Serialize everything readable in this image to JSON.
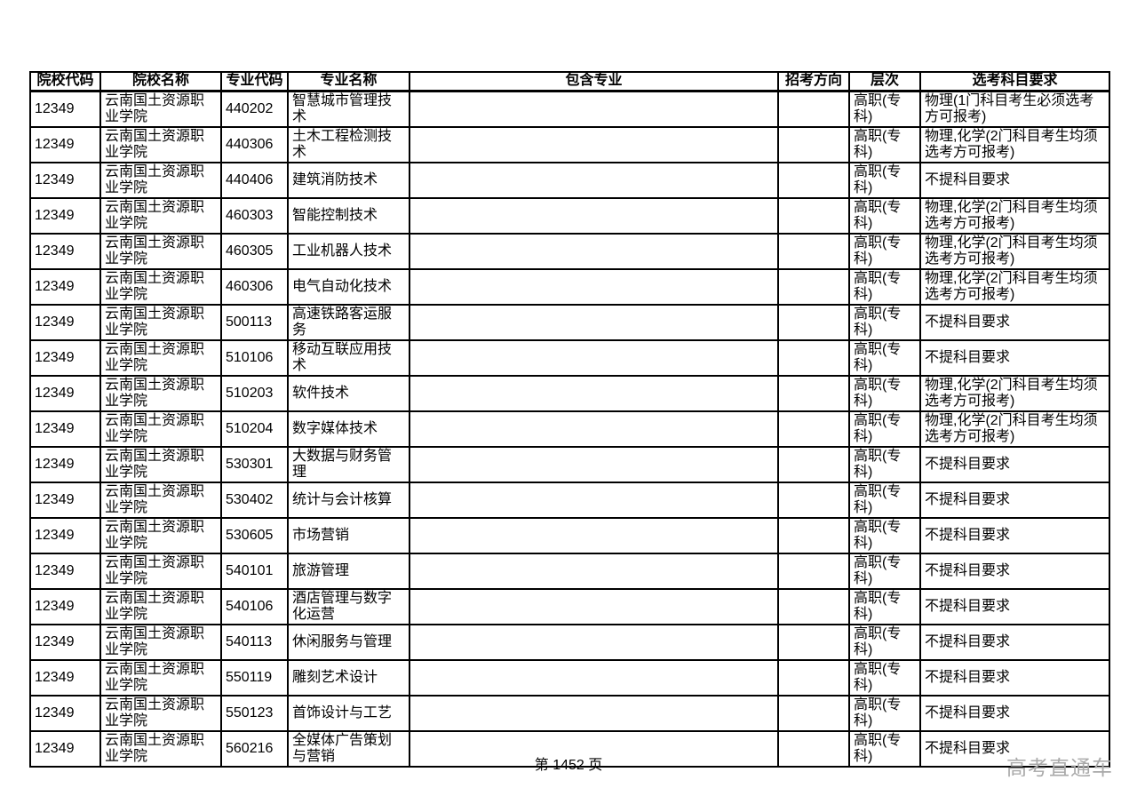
{
  "page": {
    "footer_page_label": "第 1452 页",
    "watermark": "高考直通车",
    "colors": {
      "text": "#000000",
      "border": "#000000",
      "watermark_gray": "#a9a9a9"
    }
  },
  "table": {
    "headers": [
      "院校代码",
      "院校名称",
      "专业代码",
      "专业名称",
      "包含专业",
      "招考方向",
      "层次",
      "选考科目要求"
    ],
    "rows": [
      [
        "12349",
        "云南国土资源职业学院",
        "440202",
        "智慧城市管理技术",
        "",
        "",
        "高职(专科)",
        "物理(1门科目考生必须选考方可报考)"
      ],
      [
        "12349",
        "云南国土资源职业学院",
        "440306",
        "土木工程检测技术",
        "",
        "",
        "高职(专科)",
        "物理,化学(2门科目考生均须选考方可报考)"
      ],
      [
        "12349",
        "云南国土资源职业学院",
        "440406",
        "建筑消防技术",
        "",
        "",
        "高职(专科)",
        "不提科目要求"
      ],
      [
        "12349",
        "云南国土资源职业学院",
        "460303",
        "智能控制技术",
        "",
        "",
        "高职(专科)",
        "物理,化学(2门科目考生均须选考方可报考)"
      ],
      [
        "12349",
        "云南国土资源职业学院",
        "460305",
        "工业机器人技术",
        "",
        "",
        "高职(专科)",
        "物理,化学(2门科目考生均须选考方可报考)"
      ],
      [
        "12349",
        "云南国土资源职业学院",
        "460306",
        "电气自动化技术",
        "",
        "",
        "高职(专科)",
        "物理,化学(2门科目考生均须选考方可报考)"
      ],
      [
        "12349",
        "云南国土资源职业学院",
        "500113",
        "高速铁路客运服务",
        "",
        "",
        "高职(专科)",
        "不提科目要求"
      ],
      [
        "12349",
        "云南国土资源职业学院",
        "510106",
        "移动互联应用技术",
        "",
        "",
        "高职(专科)",
        "不提科目要求"
      ],
      [
        "12349",
        "云南国土资源职业学院",
        "510203",
        "软件技术",
        "",
        "",
        "高职(专科)",
        "物理,化学(2门科目考生均须选考方可报考)"
      ],
      [
        "12349",
        "云南国土资源职业学院",
        "510204",
        "数字媒体技术",
        "",
        "",
        "高职(专科)",
        "物理,化学(2门科目考生均须选考方可报考)"
      ],
      [
        "12349",
        "云南国土资源职业学院",
        "530301",
        "大数据与财务管理",
        "",
        "",
        "高职(专科)",
        "不提科目要求"
      ],
      [
        "12349",
        "云南国土资源职业学院",
        "530402",
        "统计与会计核算",
        "",
        "",
        "高职(专科)",
        "不提科目要求"
      ],
      [
        "12349",
        "云南国土资源职业学院",
        "530605",
        "市场营销",
        "",
        "",
        "高职(专科)",
        "不提科目要求"
      ],
      [
        "12349",
        "云南国土资源职业学院",
        "540101",
        "旅游管理",
        "",
        "",
        "高职(专科)",
        "不提科目要求"
      ],
      [
        "12349",
        "云南国土资源职业学院",
        "540106",
        "酒店管理与数字化运营",
        "",
        "",
        "高职(专科)",
        "不提科目要求"
      ],
      [
        "12349",
        "云南国土资源职业学院",
        "540113",
        "休闲服务与管理",
        "",
        "",
        "高职(专科)",
        "不提科目要求"
      ],
      [
        "12349",
        "云南国土资源职业学院",
        "550119",
        "雕刻艺术设计",
        "",
        "",
        "高职(专科)",
        "不提科目要求"
      ],
      [
        "12349",
        "云南国土资源职业学院",
        "550123",
        "首饰设计与工艺",
        "",
        "",
        "高职(专科)",
        "不提科目要求"
      ],
      [
        "12349",
        "云南国土资源职业学院",
        "560216",
        "全媒体广告策划与营销",
        "",
        "",
        "高职(专科)",
        "不提科目要求"
      ]
    ]
  }
}
